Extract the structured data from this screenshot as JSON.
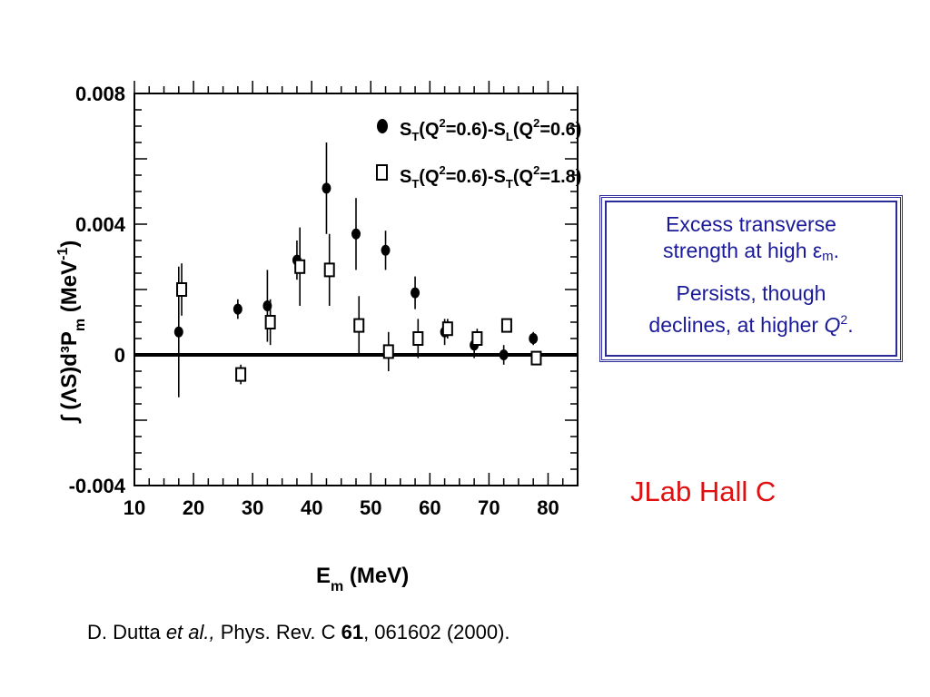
{
  "chart_data": {
    "type": "scatter",
    "xlabel": "E",
    "xlabel_sub": "m",
    "xlabel_unit": " (MeV)",
    "ylabel": "∫ (ΛS)d³P",
    "ylabel_sub": "m",
    "ylabel_unit": "  (MeV",
    "ylabel_sup": "-1",
    "ylabel_close": ")",
    "xlim": [
      10,
      85
    ],
    "ylim": [
      -0.004,
      0.008
    ],
    "x_ticks": [
      "10",
      "20",
      "30",
      "40",
      "50",
      "60",
      "70",
      "80"
    ],
    "y_ticks": [
      "-0.004",
      "0",
      "0.004",
      "0.008"
    ],
    "zero_line": true,
    "legend_position": "top-right",
    "series": [
      {
        "marker": "filled-circle",
        "legend_label": "S",
        "legend_parts": [
          "S",
          "T",
          "(Q",
          "2",
          "=0.6)-S",
          "L",
          "(Q",
          "2",
          "=0.6)"
        ],
        "points": [
          {
            "x": 17.5,
            "y": 0.0007,
            "err": 0.002
          },
          {
            "x": 27.5,
            "y": 0.0014,
            "err": 0.0003
          },
          {
            "x": 32.5,
            "y": 0.0015,
            "err": 0.0011
          },
          {
            "x": 37.5,
            "y": 0.0029,
            "err": 0.0006
          },
          {
            "x": 42.5,
            "y": 0.0051,
            "err": 0.0014
          },
          {
            "x": 47.5,
            "y": 0.0037,
            "err": 0.0011
          },
          {
            "x": 52.5,
            "y": 0.0032,
            "err": 0.0006
          },
          {
            "x": 57.5,
            "y": 0.0019,
            "err": 0.0005
          },
          {
            "x": 62.5,
            "y": 0.0007,
            "err": 0.0004
          },
          {
            "x": 67.5,
            "y": 0.0003,
            "err": 0.0004
          },
          {
            "x": 72.5,
            "y": 0.0,
            "err": 0.0003
          },
          {
            "x": 77.5,
            "y": 0.0005,
            "err": 0.0002
          }
        ]
      },
      {
        "marker": "open-square",
        "legend_label": "S",
        "legend_parts": [
          "S",
          "T",
          "(Q",
          "2",
          "=0.6)-S",
          "T",
          "(Q",
          "2",
          "=1.8)"
        ],
        "points": [
          {
            "x": 18,
            "y": 0.002,
            "err": 0.0008
          },
          {
            "x": 28,
            "y": -0.0006,
            "err": 0.0003
          },
          {
            "x": 33,
            "y": 0.001,
            "err": 0.0007
          },
          {
            "x": 38,
            "y": 0.0027,
            "err": 0.0012
          },
          {
            "x": 43,
            "y": 0.0026,
            "err": 0.0011
          },
          {
            "x": 48,
            "y": 0.0009,
            "err": 0.0009
          },
          {
            "x": 53,
            "y": 0.0001,
            "err": 0.0006
          },
          {
            "x": 58,
            "y": 0.0005,
            "err": 0.0006
          },
          {
            "x": 63,
            "y": 0.0008,
            "err": 0.0003
          },
          {
            "x": 68,
            "y": 0.0005,
            "err": 0.0003
          },
          {
            "x": 73,
            "y": 0.0009,
            "err": 0.0001
          },
          {
            "x": 78,
            "y": -0.0001,
            "err": 0.0002
          }
        ]
      }
    ]
  },
  "note": {
    "line1": "Excess transverse",
    "line2_prefix": "strength at high ",
    "epsilon": "ε",
    "epsilon_sub": "m",
    "line2_suffix": ".",
    "line3": "Persists, though",
    "line4_prefix": "declines, at higher ",
    "q": "Q",
    "q_sup": "2",
    "line4_suffix": "."
  },
  "lab_label": "JLab Hall C",
  "citation": {
    "authors": "D. Dutta ",
    "etal": "et al.,",
    "journal": " Phys. Rev. C ",
    "volume": "61",
    "rest": ", 061602 (2000)."
  },
  "colors": {
    "note_text": "#1a1a9a",
    "note_border": "#2a2a9a",
    "lab_label": "#e01010",
    "axis": "#000000"
  }
}
